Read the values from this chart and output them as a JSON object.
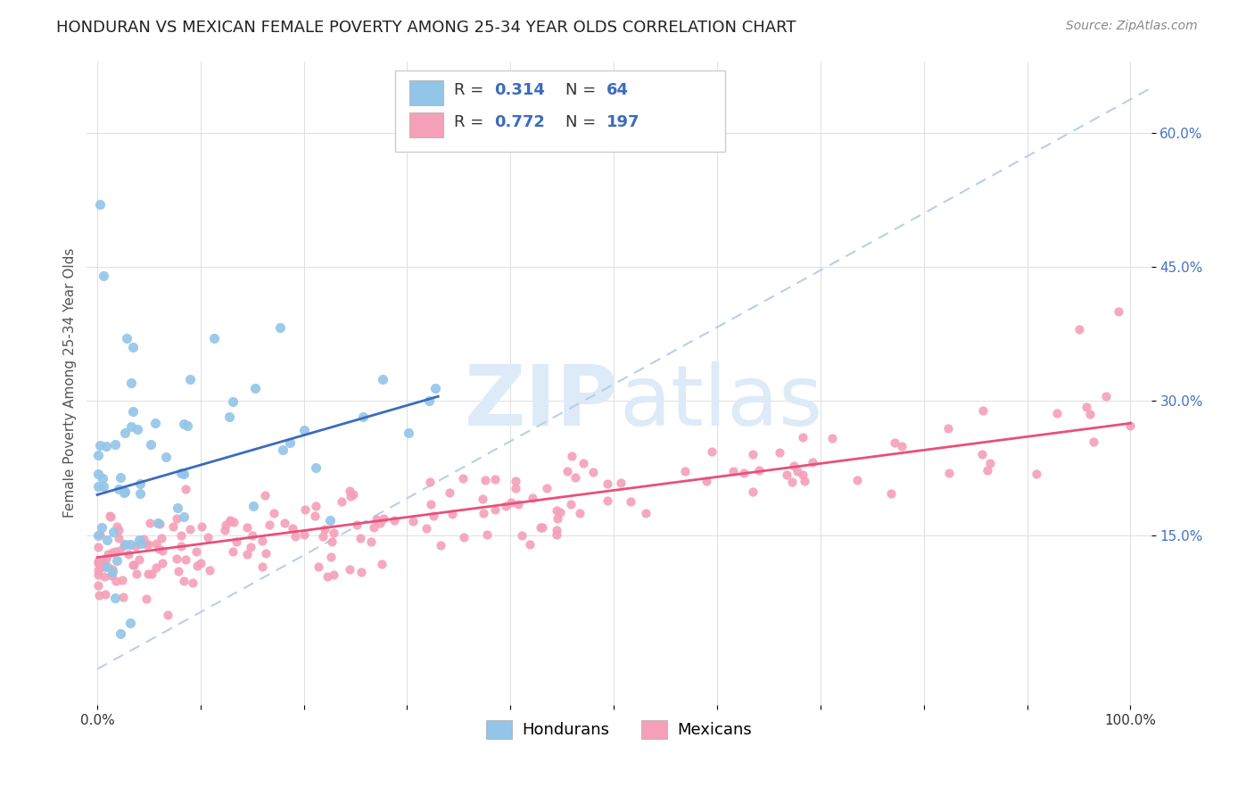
{
  "title": "HONDURAN VS MEXICAN FEMALE POVERTY AMONG 25-34 YEAR OLDS CORRELATION CHART",
  "source": "Source: ZipAtlas.com",
  "ylabel": "Female Poverty Among 25-34 Year Olds",
  "xlim": [
    -0.01,
    1.02
  ],
  "ylim": [
    -0.04,
    0.68
  ],
  "honduran_color": "#92C5E8",
  "mexican_color": "#F4A0B8",
  "honduran_line_color": "#3C6BBF",
  "mexican_line_color": "#E8507A",
  "dashed_line_color": "#B8D0E8",
  "R_honduran": 0.314,
  "N_honduran": 64,
  "R_mexican": 0.772,
  "N_mexican": 197,
  "legend_label_honduran": "Hondurans",
  "legend_label_mexican": "Mexicans",
  "watermark_zip": "ZIP",
  "watermark_atlas": "atlas",
  "watermark_color": "#DDEAF8",
  "background_color": "#FFFFFF",
  "title_fontsize": 13,
  "axis_label_fontsize": 11,
  "tick_fontsize": 11,
  "legend_fontsize": 13,
  "source_fontsize": 10,
  "seed": 12345
}
